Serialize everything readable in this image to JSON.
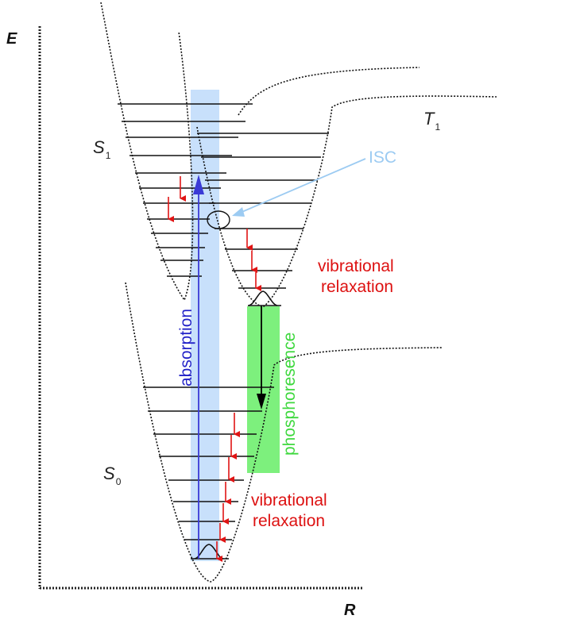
{
  "axes": {
    "y_label": "E",
    "x_label": "R"
  },
  "states": {
    "s1": {
      "letter": "S",
      "subscript": "1"
    },
    "t1": {
      "letter": "T",
      "subscript": "1"
    },
    "s0": {
      "letter": "S",
      "subscript": "0"
    }
  },
  "labels": {
    "isc": "ISC",
    "absorption": "absorption",
    "phosphoresence": "phosphoresence",
    "vib_relax_upper_line1": "vibrational",
    "vib_relax_upper_line2": "relaxation",
    "vib_relax_lower_line1": "vibrational",
    "vib_relax_lower_line2": "relaxation"
  },
  "colors": {
    "axis": "#222222",
    "curve": "#111111",
    "level": "#111111",
    "absorption_band": "#c8e0fb",
    "absorption_arrow": "#3a3ad6",
    "phosphorescence_band": "#7df07d",
    "relaxation_arrow": "#e01414",
    "isc_arrow": "#9ccbf2",
    "emission_arrow": "#000000"
  }
}
